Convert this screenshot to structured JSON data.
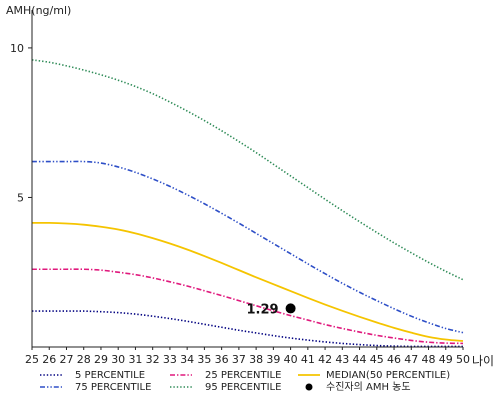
{
  "chart_data": {
    "type": "line",
    "ylabel": "AMH(ng/ml)",
    "xlabel": "나이",
    "xlim": [
      25,
      50
    ],
    "ylim": [
      0,
      11
    ],
    "x_ticks": [
      25,
      26,
      27,
      28,
      29,
      30,
      31,
      32,
      33,
      34,
      35,
      36,
      37,
      38,
      39,
      40,
      41,
      42,
      43,
      44,
      45,
      46,
      47,
      48,
      49,
      50
    ],
    "y_ticks": [
      5,
      10
    ],
    "grid": false,
    "legend_position": "bottom",
    "x": [
      25,
      26,
      27,
      28,
      29,
      30,
      31,
      32,
      33,
      34,
      35,
      36,
      37,
      38,
      39,
      40,
      41,
      42,
      43,
      44,
      45,
      46,
      47,
      48,
      49,
      50
    ],
    "series": [
      {
        "name": "5 PERCENTILE",
        "color": "#000080",
        "dash": "dotted",
        "values": [
          1.2,
          1.2,
          1.2,
          1.2,
          1.18,
          1.15,
          1.1,
          1.03,
          0.95,
          0.86,
          0.76,
          0.66,
          0.56,
          0.47,
          0.38,
          0.3,
          0.23,
          0.17,
          0.12,
          0.08,
          0.05,
          0.03,
          0.02,
          0.02,
          0.02,
          0.02
        ]
      },
      {
        "name": "25 PERCENTILE",
        "color": "#e0197d",
        "dash": "dashdot",
        "values": [
          2.6,
          2.6,
          2.6,
          2.6,
          2.57,
          2.5,
          2.42,
          2.31,
          2.18,
          2.04,
          1.88,
          1.72,
          1.55,
          1.38,
          1.21,
          1.05,
          0.9,
          0.75,
          0.62,
          0.5,
          0.39,
          0.3,
          0.22,
          0.16,
          0.13,
          0.12
        ]
      },
      {
        "name": "MEDIAN(50 PERCENTILE)",
        "color": "#f5c400",
        "dash": "solid",
        "values": [
          4.15,
          4.15,
          4.13,
          4.09,
          4.02,
          3.93,
          3.8,
          3.64,
          3.46,
          3.26,
          3.04,
          2.81,
          2.57,
          2.33,
          2.1,
          1.87,
          1.64,
          1.42,
          1.21,
          1.01,
          0.82,
          0.64,
          0.48,
          0.34,
          0.25,
          0.2
        ]
      },
      {
        "name": "75 PERCENTILE",
        "color": "#2e4fc7",
        "dash": "dashdotdot",
        "values": [
          6.2,
          6.2,
          6.2,
          6.2,
          6.15,
          6.02,
          5.84,
          5.62,
          5.37,
          5.09,
          4.79,
          4.47,
          4.14,
          3.8,
          3.46,
          3.12,
          2.78,
          2.45,
          2.13,
          1.83,
          1.55,
          1.28,
          1.03,
          0.81,
          0.62,
          0.48
        ]
      },
      {
        "name": "95 PERCENTILE",
        "color": "#2e8b57",
        "dash": "dotted",
        "values": [
          9.6,
          9.52,
          9.4,
          9.26,
          9.1,
          8.92,
          8.71,
          8.47,
          8.19,
          7.89,
          7.57,
          7.23,
          6.87,
          6.5,
          6.11,
          5.72,
          5.33,
          4.94,
          4.56,
          4.19,
          3.83,
          3.48,
          3.15,
          2.83,
          2.53,
          2.25
        ]
      }
    ],
    "highlight_point": {
      "name": "수진자의 AMH 농도",
      "x": 40,
      "y": 1.29,
      "label": "1.29",
      "color": "#000000"
    }
  }
}
